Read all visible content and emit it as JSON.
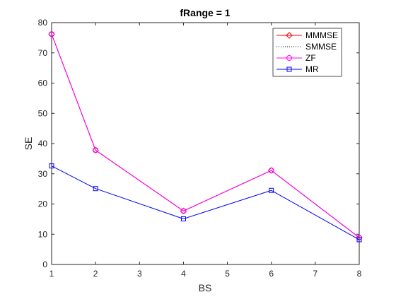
{
  "chart_data": {
    "type": "line",
    "title": "fRange = 1",
    "xlabel": "BS",
    "ylabel": "SE",
    "xlim": [
      1,
      8
    ],
    "ylim": [
      0,
      80
    ],
    "xticks": [
      "1",
      "2",
      "3",
      "4",
      "5",
      "6",
      "7",
      "8"
    ],
    "yticks": [
      "0",
      "10",
      "20",
      "30",
      "40",
      "50",
      "60",
      "70",
      "80"
    ],
    "grid": false,
    "legend_position": "top-right",
    "x": [
      1,
      2,
      4,
      6,
      8
    ],
    "series": [
      {
        "name": "MMMSE",
        "values": [
          76.2,
          37.8,
          17.7,
          31.1,
          8.9
        ],
        "color": "#ff0000",
        "marker": "diamond",
        "line": "solid"
      },
      {
        "name": "SMMSE",
        "values": [
          76.2,
          37.8,
          17.7,
          31.1,
          8.9
        ],
        "color": "#000000",
        "marker": "none",
        "line": "dotted"
      },
      {
        "name": "ZF",
        "values": [
          76.2,
          37.8,
          17.7,
          31.1,
          8.9
        ],
        "color": "#ff00ff",
        "marker": "circle",
        "line": "solid"
      },
      {
        "name": "MR",
        "values": [
          32.6,
          25.1,
          15.1,
          24.5,
          8.2
        ],
        "color": "#0000ff",
        "marker": "square",
        "line": "solid"
      }
    ]
  }
}
